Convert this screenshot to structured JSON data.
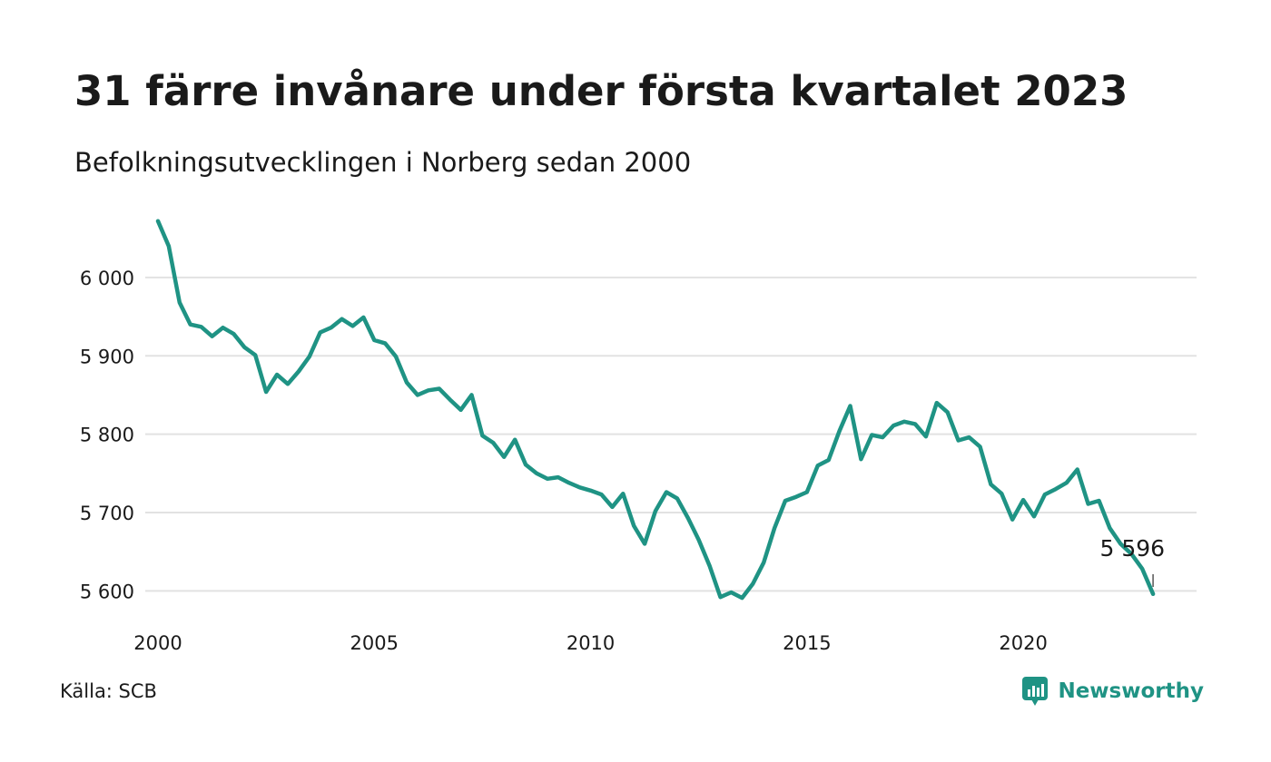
{
  "title": "31 färre invånare under första kvartalet 2023",
  "subtitle": "Befolkningsutvecklingen i Norberg sedan 2000",
  "source": "Källa: SCB",
  "brand": "Newsworthy",
  "colors": {
    "line": "#1f9384",
    "grid": "#e2e2e2",
    "text": "#1a1a1a",
    "brand": "#1f9384"
  },
  "chart_data": {
    "type": "line",
    "title": "31 färre invånare under första kvartalet 2023",
    "subtitle": "Befolkningsutvecklingen i Norberg sedan 2000",
    "xlabel": "",
    "ylabel": "",
    "x_range": [
      2000,
      2023.25
    ],
    "ylim": [
      5583,
      6074
    ],
    "grid": true,
    "y_ticks": [
      5600,
      5700,
      5800,
      5900,
      6000
    ],
    "y_tick_labels": [
      "5 600",
      "5 700",
      "5 800",
      "5 900",
      "6 000"
    ],
    "x_ticks": [
      2000,
      2005,
      2010,
      2015,
      2020
    ],
    "x_tick_labels": [
      "2000",
      "2005",
      "2010",
      "2015",
      "2020"
    ],
    "last_label": "5 596",
    "series": [
      {
        "x": [
          2000.0,
          2000.25,
          2000.5,
          2000.75,
          2001.0,
          2001.25,
          2001.5,
          2001.75,
          2002.0,
          2002.25,
          2002.5,
          2002.75,
          2003.0,
          2003.25,
          2003.5,
          2003.75,
          2004.0,
          2004.25,
          2004.5,
          2004.75,
          2005.0,
          2005.25,
          2005.5,
          2005.75,
          2006.0,
          2006.25,
          2006.5,
          2006.75,
          2007.0,
          2007.25,
          2007.5,
          2007.75,
          2008.0,
          2008.25,
          2008.5,
          2008.75,
          2009.0,
          2009.25,
          2009.5,
          2009.75,
          2010.0,
          2010.25,
          2010.5,
          2010.75,
          2011.0,
          2011.25,
          2011.5,
          2011.75,
          2012.0,
          2012.25,
          2012.5,
          2012.75,
          2013.0,
          2013.25,
          2013.5,
          2013.75,
          2014.0,
          2014.25,
          2014.5,
          2014.75,
          2015.0,
          2015.25,
          2015.5,
          2015.75,
          2016.0,
          2016.25,
          2016.5,
          2016.75,
          2017.0,
          2017.25,
          2017.5,
          2017.75,
          2018.0,
          2018.25,
          2018.5,
          2018.75,
          2019.0,
          2019.25,
          2019.5,
          2019.75,
          2020.0,
          2020.25,
          2020.5,
          2020.75,
          2021.0,
          2021.25,
          2021.5,
          2021.75,
          2022.0,
          2022.25,
          2022.5,
          2022.75,
          2023.0
        ],
        "values": [
          6072,
          6040,
          5968,
          5940,
          5937,
          5925,
          5936,
          5928,
          5911,
          5901,
          5854,
          5876,
          5864,
          5880,
          5899,
          5930,
          5936,
          5947,
          5938,
          5949,
          5920,
          5916,
          5899,
          5866,
          5850,
          5856,
          5858,
          5844,
          5831,
          5850,
          5798,
          5789,
          5771,
          5793,
          5761,
          5750,
          5743,
          5745,
          5738,
          5732,
          5728,
          5723,
          5707,
          5724,
          5683,
          5660,
          5702,
          5726,
          5718,
          5693,
          5665,
          5632,
          5592,
          5598,
          5591,
          5609,
          5636,
          5680,
          5715,
          5720,
          5726,
          5760,
          5767,
          5804,
          5836,
          5768,
          5799,
          5796,
          5811,
          5816,
          5813,
          5797,
          5840,
          5828,
          5792,
          5796,
          5784,
          5736,
          5724,
          5691,
          5716,
          5695,
          5723,
          5730,
          5738,
          5755,
          5711,
          5715,
          5680,
          5660,
          5647,
          5628,
          5596
        ]
      }
    ]
  }
}
